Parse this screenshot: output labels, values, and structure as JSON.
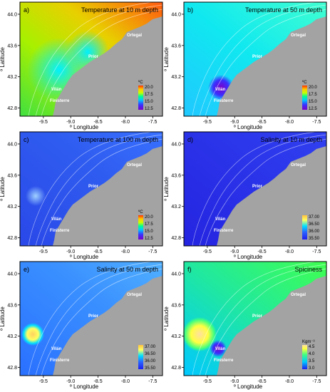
{
  "figure": {
    "panels_description": "Six map panels of the NW Iberian shelf",
    "x_axis_label": "º Longitude",
    "y_axis_label": "º Latitude",
    "x_ticks": [
      "-9.5",
      "-9.0",
      "-8.5",
      "-8.0",
      "-7.5"
    ],
    "y_ticks": [
      "42.8",
      "43.2",
      "43.6",
      "44.0"
    ],
    "place_labels": [
      "Ortegal",
      "Prior",
      "Vilán",
      "Finisterre"
    ]
  },
  "chart_data": [
    {
      "type": "heatmap",
      "panel": "a)",
      "title": "Temperature at 10 m depth",
      "xlabel": "º Longitude",
      "ylabel": "º Latitude",
      "xlim": [
        -9.85,
        -7.4
      ],
      "ylim": [
        42.75,
        44.1
      ],
      "legend": {
        "unit": "ºC",
        "values": [
          "20.0",
          "17.5",
          "15.0",
          "12.5"
        ],
        "placement": "bottom-right"
      },
      "labels": [
        "Ortegal",
        "Prior",
        "Vilán",
        "Finisterre"
      ]
    },
    {
      "type": "heatmap",
      "panel": "b)",
      "title": "Temperature at 50 m depth",
      "xlabel": "º Longitude",
      "ylabel": "º Latitude",
      "xlim": [
        -9.85,
        -7.4
      ],
      "ylim": [
        42.75,
        44.1
      ],
      "legend": {
        "unit": "ºC",
        "values": [
          "20.0",
          "17.5",
          "15.0",
          "12.5"
        ],
        "placement": "bottom-right"
      },
      "labels": [
        "Ortegal",
        "Prior",
        "Vilán",
        "Finisterre"
      ]
    },
    {
      "type": "heatmap",
      "panel": "c)",
      "title": "Temperature at 100 m depth",
      "xlabel": "º Longitude",
      "ylabel": "º Latitude",
      "xlim": [
        -9.85,
        -7.4
      ],
      "ylim": [
        42.75,
        44.1
      ],
      "legend": {
        "unit": "ºC",
        "values": [
          "20.0",
          "17.5",
          "15.0",
          "12.5"
        ],
        "placement": "bottom-right"
      },
      "labels": [
        "Ortegal",
        "Prior",
        "Vilán",
        "Finisterre"
      ]
    },
    {
      "type": "heatmap",
      "panel": "d)",
      "title": "Salinity at 10 m depth",
      "xlabel": "º Longitude",
      "ylabel": "º Latitude",
      "xlim": [
        -9.85,
        -7.4
      ],
      "ylim": [
        42.75,
        44.1
      ],
      "legend": {
        "unit": "",
        "values": [
          "37.00",
          "36.50",
          "36.00",
          "35.50"
        ],
        "placement": "bottom-right"
      },
      "labels": [
        "Ortegal",
        "Prior",
        "Vilán",
        "Finisterre"
      ]
    },
    {
      "type": "heatmap",
      "panel": "e)",
      "title": "Salinity at 50 m depth",
      "xlabel": "º Longitude",
      "ylabel": "º Latitude",
      "xlim": [
        -9.85,
        -7.4
      ],
      "ylim": [
        42.75,
        44.1
      ],
      "legend": {
        "unit": "",
        "values": [
          "37.00",
          "36.50",
          "36.00",
          "35.50"
        ],
        "placement": "bottom-right"
      },
      "labels": [
        "Ortegal",
        "Prior",
        "Vilán",
        "Finisterre"
      ]
    },
    {
      "type": "heatmap",
      "panel": "f)",
      "title": "Spiciness",
      "xlabel": "º Longitude",
      "ylabel": "º Latitude",
      "xlim": [
        -9.85,
        -7.4
      ],
      "ylim": [
        42.75,
        44.1
      ],
      "legend": {
        "unit": "Kgm⁻³",
        "values": [
          "4.5",
          "4.0",
          "3.5",
          "3.0"
        ],
        "placement": "bottom-right"
      },
      "labels": [
        "Ortegal",
        "Prior",
        "Vilán",
        "Finisterre"
      ]
    }
  ],
  "colors": {
    "land": "#a3a3a3",
    "temp_ramp": [
      "#7a00c8",
      "#3a30ff",
      "#00c8ff",
      "#00ff90",
      "#c8ff00",
      "#ffc800",
      "#ff5000"
    ],
    "salinity_ramp": [
      "#1e1ef0",
      "#2a64ff",
      "#00e0ff",
      "#ffff60",
      "#ffd040",
      "#ff7030"
    ],
    "spice_ramp": [
      "#1e1ef0",
      "#2a64ff",
      "#00e8ff",
      "#60ff60",
      "#ffff40",
      "#ffd080"
    ]
  }
}
